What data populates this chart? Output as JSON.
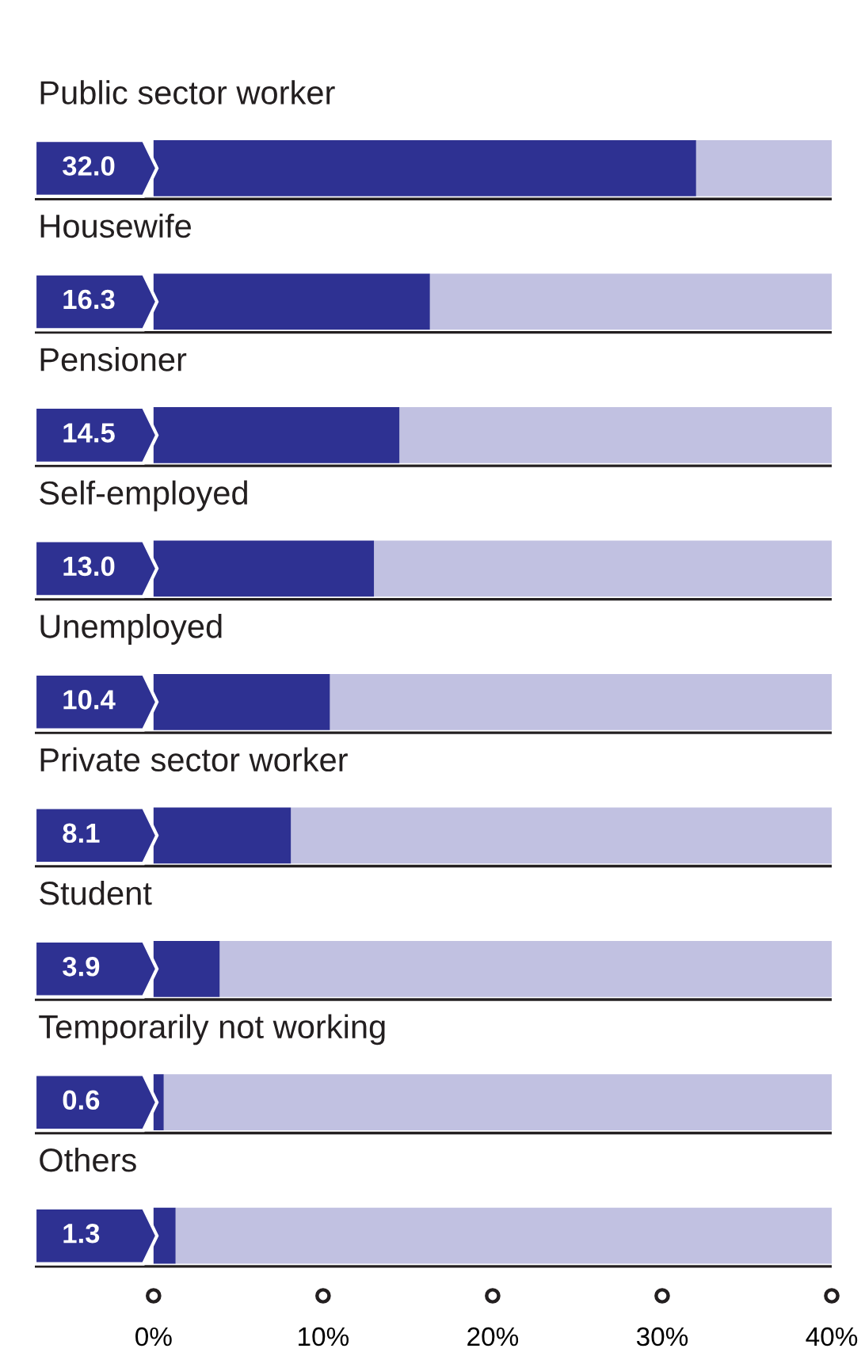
{
  "chart_data": {
    "type": "bar",
    "orientation": "horizontal",
    "stacked": true,
    "categories": [
      "Public sector worker",
      "Housewife",
      "Pensioner",
      "Self-employed",
      "Unemployed",
      "Private sector worker",
      "Student",
      "Temporarily not working",
      "Others"
    ],
    "series": [
      {
        "color": "#2e3192",
        "values": [
          32.0,
          16.3,
          14.5,
          13.0,
          10.4,
          8.1,
          3.9,
          0.6,
          1.3
        ],
        "value_labels": [
          "32.0",
          "16.3",
          "14.5",
          "13.0",
          "10.4",
          "8.1",
          "3.9",
          "0.6",
          "1.3"
        ]
      },
      {
        "color": "#c1c1e1",
        "values": [
          8.0,
          23.7,
          25.5,
          27.0,
          29.6,
          31.9,
          36.1,
          39.4,
          38.7
        ]
      }
    ],
    "xlim": [
      -7,
      40
    ],
    "xticks": [
      {
        "value": 0,
        "label": "0%"
      },
      {
        "value": 10,
        "label": "10%"
      },
      {
        "value": 20,
        "label": "20%"
      },
      {
        "value": 30,
        "label": "30%"
      },
      {
        "value": 40,
        "label": "40%"
      }
    ],
    "grid": false,
    "legend": false
  }
}
